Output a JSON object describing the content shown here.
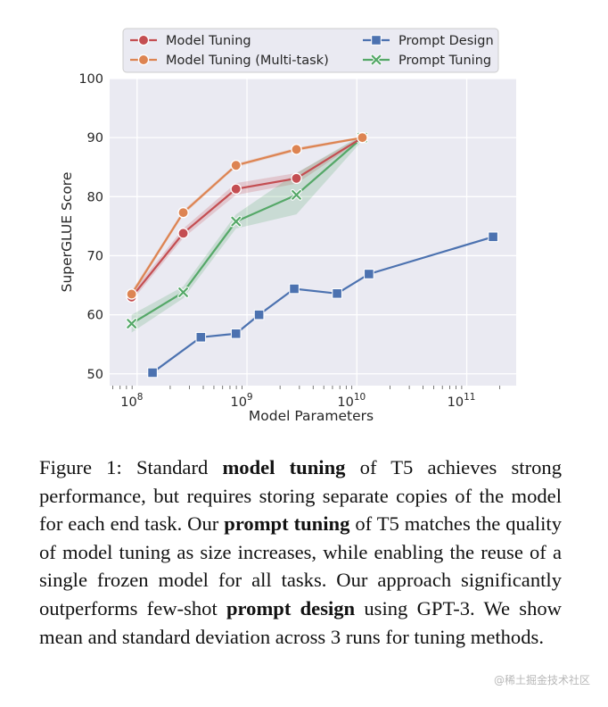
{
  "chart_data": {
    "type": "line",
    "xscale": "log",
    "xlim_exp": [
      7.75,
      11.45
    ],
    "ylim": [
      48,
      100
    ],
    "xlabel": "Model Parameters",
    "ylabel": "SuperGLUE Score",
    "yticks": [
      50,
      60,
      70,
      80,
      90,
      100
    ],
    "xticks": [
      {
        "exp": 8,
        "label": "10",
        "sup": "8"
      },
      {
        "exp": 9,
        "label": "10",
        "sup": "9"
      },
      {
        "exp": 10,
        "label": "10",
        "sup": "10"
      },
      {
        "exp": 11,
        "label": "10",
        "sup": "11"
      }
    ],
    "legend_position": "top",
    "series": [
      {
        "name": "Model Tuning",
        "color": "#c44e52",
        "marker": "circle",
        "points": [
          [
            7.95,
            63.0
          ],
          [
            8.42,
            73.8
          ],
          [
            8.9,
            81.3
          ],
          [
            9.45,
            83.1
          ],
          [
            10.05,
            90.0
          ]
        ],
        "band": [
          [
            62.3,
            63.7
          ],
          [
            73.0,
            74.6
          ],
          [
            80.3,
            82.3
          ],
          [
            82.2,
            84.0
          ],
          [
            89.7,
            90.3
          ]
        ]
      },
      {
        "name": "Model Tuning (Multi-task)",
        "color": "#dd8452",
        "marker": "circle",
        "points": [
          [
            7.95,
            63.5
          ],
          [
            8.42,
            77.3
          ],
          [
            8.9,
            85.3
          ],
          [
            9.45,
            88.0
          ],
          [
            10.05,
            90.0
          ]
        ],
        "band": [
          [
            63.0,
            64.0
          ],
          [
            76.9,
            77.7
          ],
          [
            85.0,
            85.6
          ],
          [
            87.7,
            88.3
          ],
          [
            89.8,
            90.2
          ]
        ]
      },
      {
        "name": "Prompt Design",
        "color": "#4c72b0",
        "marker": "square",
        "points": [
          [
            8.14,
            50.2
          ],
          [
            8.58,
            56.2
          ],
          [
            8.9,
            56.8
          ],
          [
            9.11,
            60.0
          ],
          [
            9.43,
            64.4
          ],
          [
            9.82,
            63.6
          ],
          [
            10.11,
            66.9
          ],
          [
            11.24,
            73.2
          ]
        ]
      },
      {
        "name": "Prompt Tuning",
        "color": "#55a868",
        "marker": "x",
        "points": [
          [
            7.95,
            58.5
          ],
          [
            8.42,
            63.8
          ],
          [
            8.9,
            75.8
          ],
          [
            9.45,
            80.3
          ],
          [
            10.05,
            90.0
          ]
        ],
        "band": [
          [
            57.0,
            60.0
          ],
          [
            62.8,
            64.8
          ],
          [
            74.6,
            77.0
          ],
          [
            77.0,
            84.0
          ],
          [
            89.5,
            90.5
          ]
        ]
      }
    ]
  },
  "caption": {
    "prefix": "Figure 1: Standard ",
    "bold1": "model tuning",
    "mid1": " of T5 achieves strong performance, but requires storing separate copies of the model for each end task. Our ",
    "bold2": "prompt tuning",
    "mid2": " of T5 matches the quality of model tuning as size increases, while enabling the reuse of a single frozen model for all tasks. Our approach significantly outperforms few-shot ",
    "bold3": "prompt design",
    "suffix": " using GPT-3. We show mean and standard deviation across 3 runs for tuning methods."
  },
  "watermark": "@稀土掘金技术社区"
}
